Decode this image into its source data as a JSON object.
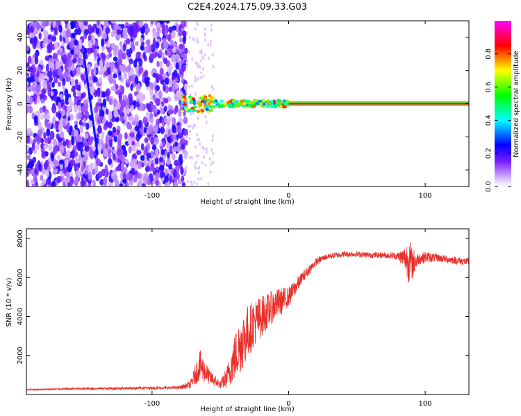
{
  "title": "C2E4.2024.175.09.33.G03",
  "chart_data": [
    {
      "type": "heatmap",
      "xlabel": "Height of straight line (km)",
      "ylabel": "Frequency (Hz)",
      "xlim": [
        -192,
        132
      ],
      "ylim": [
        -50,
        50
      ],
      "xticks": [
        -100,
        0,
        100
      ],
      "xtick_labels": [
        "-100",
        "0",
        "100"
      ],
      "yticks": [
        -40,
        -20,
        0,
        20,
        40
      ],
      "ytick_labels": [
        "-40",
        "-20",
        "0",
        "20",
        "40"
      ],
      "colorbar": {
        "label": "Normalized spectral amplitude",
        "range": [
          0,
          1
        ],
        "ticks": [
          0.0,
          0.2,
          0.4,
          0.6,
          0.8
        ],
        "tick_labels": [
          "0.0",
          "0.2",
          "0.4",
          "0.6",
          "0.8"
        ],
        "colormap": [
          "#ffffff",
          "#d9b8ff",
          "#7a1fff",
          "#0000ff",
          "#00ffff",
          "#00ff00",
          "#ffff00",
          "#ff0000",
          "#ff00ff"
        ]
      },
      "features": {
        "noise_region_x": [
          -192,
          -75
        ],
        "weak_echo_region_x": [
          -75,
          -55
        ],
        "dominant_line": {
          "frequency_hz": 0,
          "strong_from_x": -75,
          "strong_to_x": 132,
          "noisy_segment_x": [
            -78,
            0
          ],
          "amplitude_along_line": 0.9
        },
        "drift_streak": [
          [
            -150,
            30
          ],
          [
            -140,
            -30
          ]
        ]
      },
      "grid": false
    },
    {
      "type": "line",
      "xlabel": "Height of straight line (km)",
      "ylabel": "SNR (10 * v/v)",
      "xlim": [
        -192,
        132
      ],
      "ylim": [
        0,
        8500
      ],
      "xticks": [
        -100,
        0,
        100
      ],
      "xtick_labels": [
        "-100",
        "0",
        "100"
      ],
      "yticks": [
        2000,
        4000,
        6000,
        8000
      ],
      "ytick_labels": [
        "2000",
        "4000",
        "6000",
        "8000"
      ],
      "line_color": "#e8302a",
      "grid": false,
      "envelope_x": [
        -192,
        -150,
        -80,
        -72,
        -65,
        -58,
        -50,
        -45,
        -40,
        -35,
        -30,
        -25,
        -20,
        -15,
        -10,
        -5,
        0,
        5,
        10,
        15,
        20,
        25,
        30,
        35,
        40,
        50,
        60,
        70,
        80,
        85,
        88,
        90,
        95,
        100,
        110,
        120,
        132
      ],
      "envelope_y": [
        250,
        300,
        350,
        500,
        1500,
        900,
        500,
        900,
        1800,
        2600,
        3200,
        3700,
        4000,
        4300,
        4600,
        4800,
        5000,
        5500,
        6000,
        6400,
        6800,
        7000,
        7100,
        7150,
        7200,
        7200,
        7150,
        7150,
        7100,
        7000,
        6900,
        6700,
        6950,
        7050,
        7000,
        6900,
        6800
      ],
      "noise_amplitude": [
        30,
        60,
        80,
        200,
        800,
        400,
        200,
        600,
        1200,
        1500,
        1400,
        1200,
        1100,
        900,
        800,
        700,
        500,
        400,
        300,
        250,
        200,
        150,
        150,
        150,
        150,
        150,
        150,
        150,
        200,
        600,
        1200,
        900,
        300,
        300,
        200,
        200,
        200
      ]
    }
  ]
}
